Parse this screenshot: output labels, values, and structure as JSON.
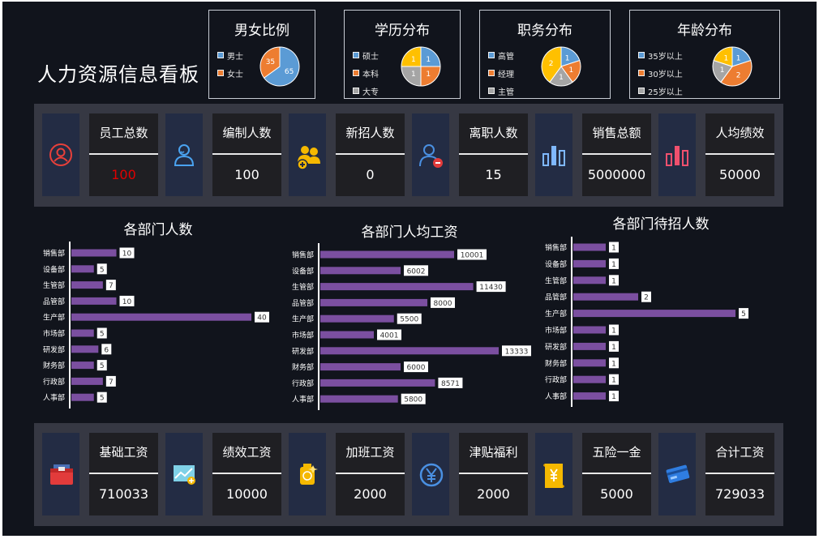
{
  "title": "人力资源信息看板",
  "pies": [
    {
      "title": "男女比例",
      "legend": [
        "男士",
        "女士"
      ],
      "colors": [
        "#5b9bd5",
        "#ed7d31"
      ],
      "values": [
        65,
        35
      ]
    },
    {
      "title": "学历分布",
      "legend": [
        "硕士",
        "本科",
        "大专"
      ],
      "colors": [
        "#5b9bd5",
        "#ed7d31",
        "#a5a5a5"
      ],
      "values": [
        1,
        1,
        1,
        1
      ],
      "slice_colors": [
        "#5b9bd5",
        "#ed7d31",
        "#a5a5a5",
        "#ffc000"
      ]
    },
    {
      "title": "职务分布",
      "legend": [
        "高管",
        "经理",
        "主管"
      ],
      "colors": [
        "#5b9bd5",
        "#ed7d31",
        "#a5a5a5"
      ],
      "values": [
        1,
        1,
        1,
        2
      ],
      "slice_colors": [
        "#5b9bd5",
        "#ed7d31",
        "#a5a5a5",
        "#ffc000"
      ]
    },
    {
      "title": "年龄分布",
      "legend": [
        "35岁以上",
        "30岁以上",
        "25岁以上"
      ],
      "colors": [
        "#5b9bd5",
        "#ed7d31",
        "#a5a5a5"
      ],
      "values": [
        1,
        2,
        1,
        1
      ],
      "slice_colors": [
        "#5b9bd5",
        "#ed7d31",
        "#a5a5a5",
        "#ffc000"
      ]
    }
  ],
  "kpis": [
    {
      "label": "员工总数",
      "value": "100",
      "icon": "user-circle-icon",
      "value_color": "#e00000"
    },
    {
      "label": "编制人数",
      "value": "100",
      "icon": "person-icon"
    },
    {
      "label": "新招人数",
      "value": "0",
      "icon": "add-people-icon"
    },
    {
      "label": "离职人数",
      "value": "15",
      "icon": "remove-user-icon"
    },
    {
      "label": "销售总额",
      "value": "5000000",
      "icon": "bar-chart-icon"
    },
    {
      "label": "人均绩效",
      "value": "50000",
      "icon": "red-bar-chart-icon"
    }
  ],
  "salary": [
    {
      "label": "基础工资",
      "value": "710033",
      "icon": "wallet-icon"
    },
    {
      "label": "绩效工资",
      "value": "10000",
      "icon": "trend-chart-icon"
    },
    {
      "label": "加班工资",
      "value": "2000",
      "icon": "bonus-icon"
    },
    {
      "label": "津贴福利",
      "value": "2000",
      "icon": "yen-circle-icon"
    },
    {
      "label": "五险一金",
      "value": "5000",
      "icon": "yen-scroll-icon"
    },
    {
      "label": "合计工资",
      "value": "729033",
      "icon": "card-icon"
    }
  ],
  "chart_data": [
    {
      "type": "bar",
      "title": "各部门人数",
      "categories": [
        "销售部",
        "设备部",
        "生管部",
        "品管部",
        "生产部",
        "市场部",
        "研发部",
        "财务部",
        "行政部",
        "人事部"
      ],
      "values": [
        10,
        5,
        7,
        10,
        40,
        5,
        6,
        5,
        7,
        5
      ],
      "xlim": [
        0,
        40
      ]
    },
    {
      "type": "bar",
      "title": "各部门人均工资",
      "categories": [
        "销售部",
        "设备部",
        "生管部",
        "品管部",
        "生产部",
        "市场部",
        "研发部",
        "财务部",
        "行政部",
        "人事部"
      ],
      "values": [
        10001,
        6002,
        11430,
        8000,
        5500,
        4001,
        13333,
        6000,
        8571,
        5800
      ],
      "xlim": [
        0,
        13333
      ]
    },
    {
      "type": "bar",
      "title": "各部门待招人数",
      "categories": [
        "销售部",
        "设备部",
        "生管部",
        "品管部",
        "生产部",
        "市场部",
        "研发部",
        "财务部",
        "行政部",
        "人事部"
      ],
      "values": [
        1,
        1,
        1,
        2,
        5,
        1,
        1,
        1,
        1,
        1
      ],
      "xlim": [
        0,
        5
      ]
    }
  ],
  "bar_color": "#7b4fa0"
}
